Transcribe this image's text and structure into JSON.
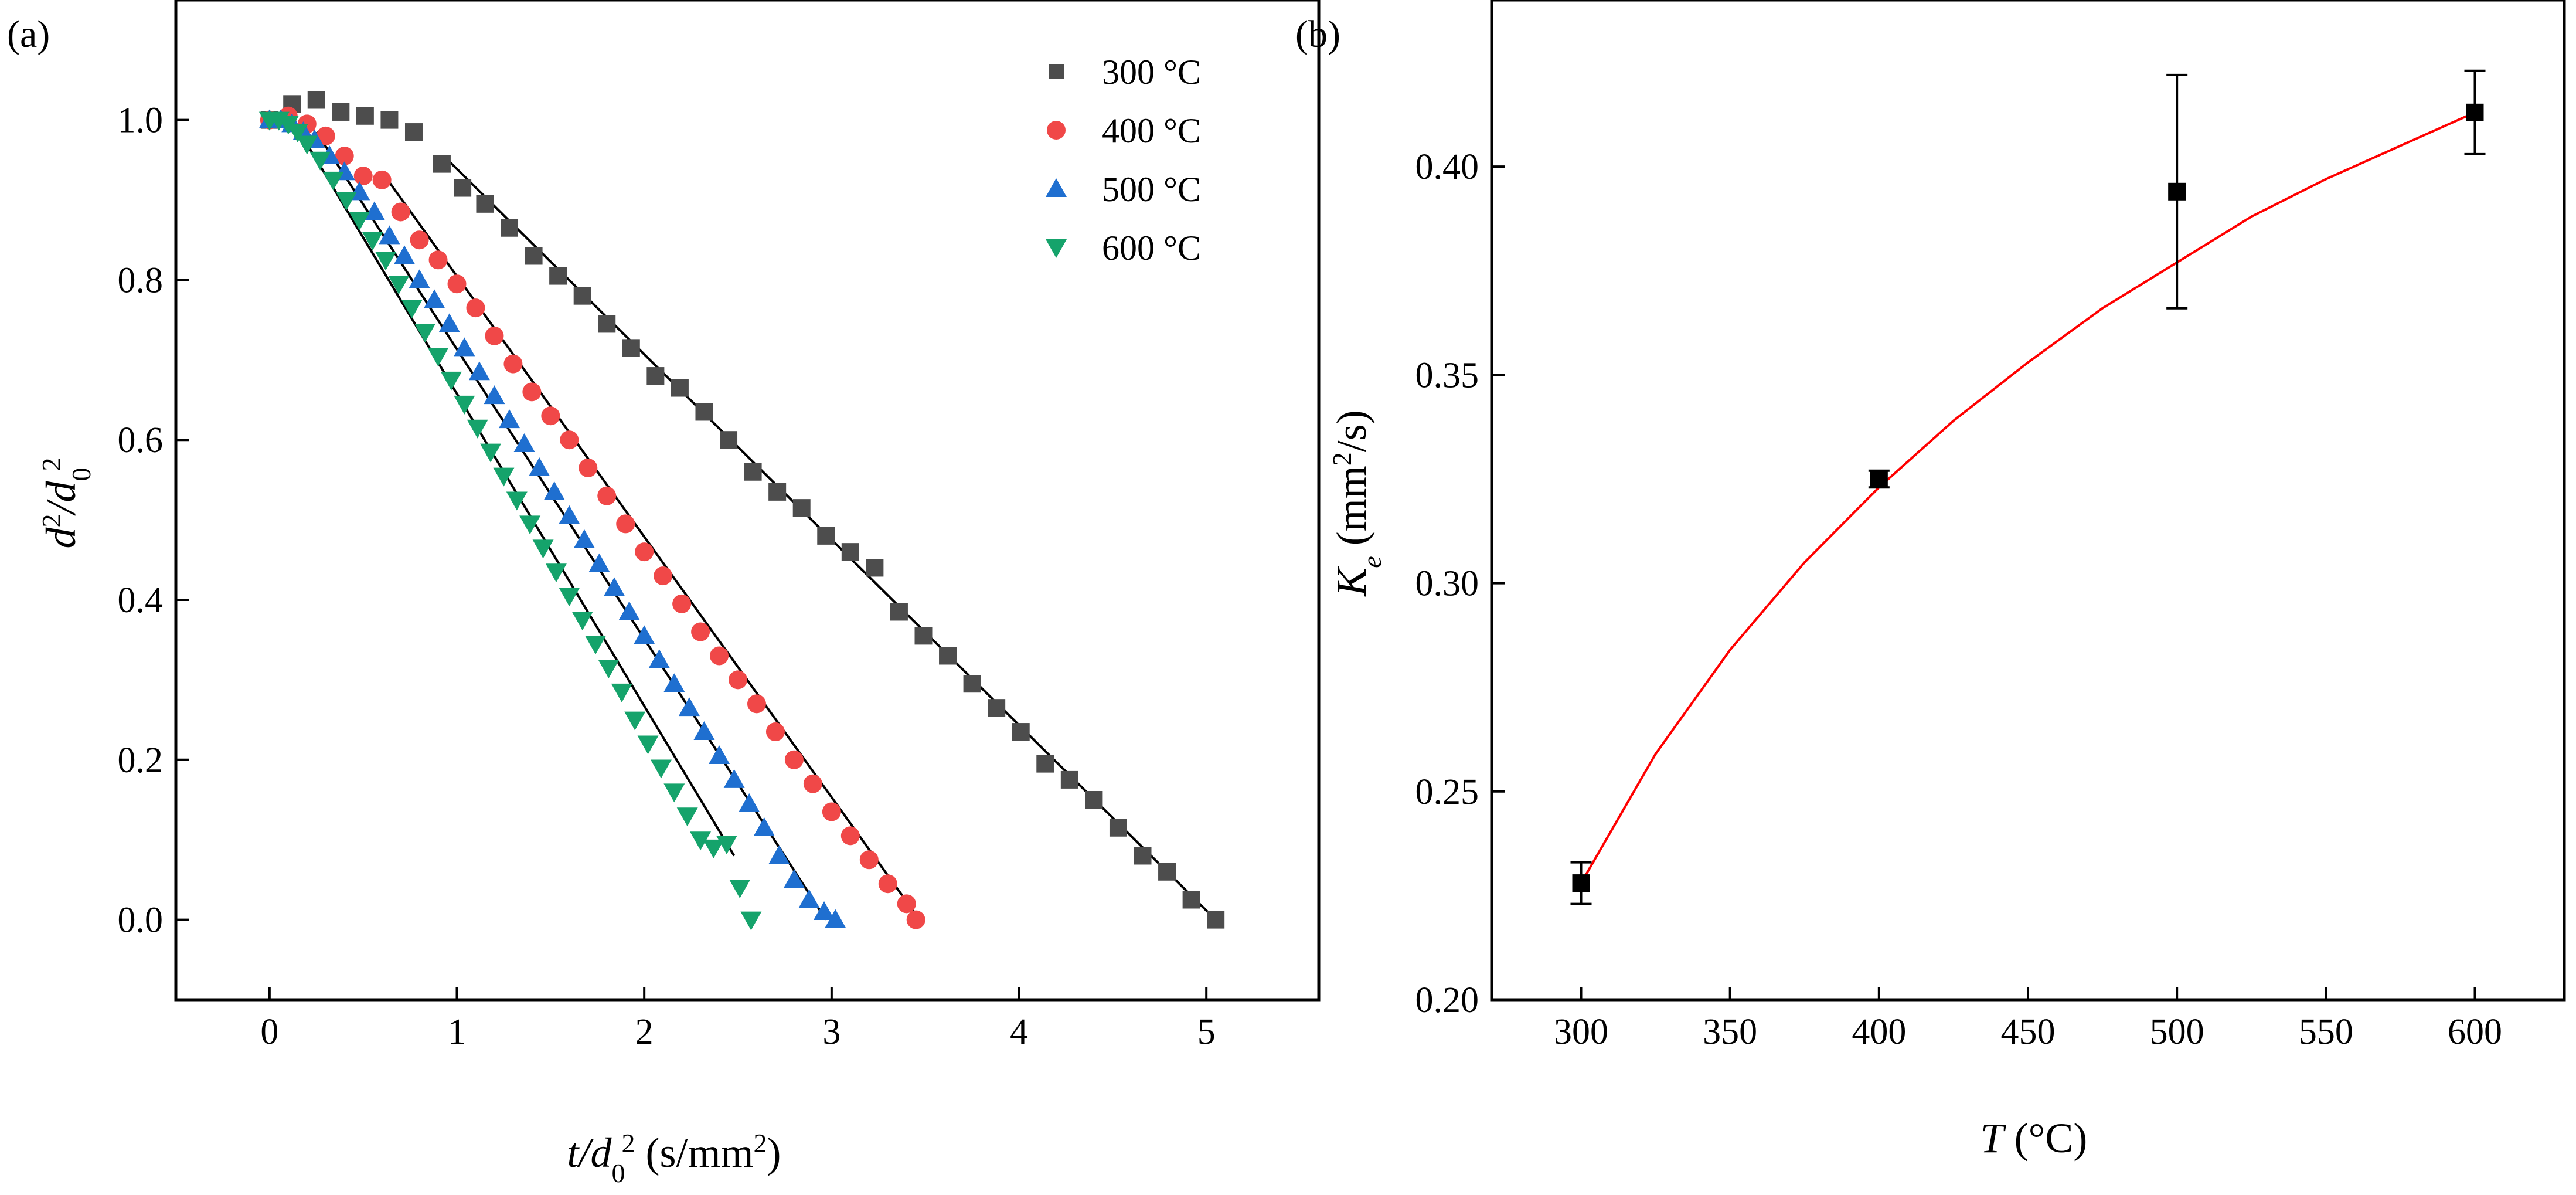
{
  "chart_data": [
    {
      "panel_label": "(a)",
      "type": "scatter",
      "title": "",
      "xlabel": {
        "main": "t/d",
        "sub": "0",
        "sup": "2",
        "units_open": " (s/mm",
        "units_sup": "2",
        "units_close": ")"
      },
      "ylabel": {
        "p1": "d",
        "sup1": "2",
        "p2": "/d",
        "sub": "0",
        "sup2": "2"
      },
      "xlim": [
        -0.5,
        5.6
      ],
      "ylim": [
        -0.1,
        1.15
      ],
      "xticks": [
        0,
        1,
        2,
        3,
        4,
        5
      ],
      "xtick_labels": [
        "0",
        "1",
        "2",
        "3",
        "4",
        "5"
      ],
      "yticks": [
        0.0,
        0.2,
        0.4,
        0.6,
        0.8,
        1.0
      ],
      "ytick_labels": [
        "0.0",
        "0.2",
        "0.4",
        "0.6",
        "0.8",
        "1.0"
      ],
      "legend_position": "top-right",
      "series": [
        {
          "name": "300 °C",
          "marker": "square",
          "color": "#4d4d4d",
          "x": [
            0.0,
            0.12,
            0.25,
            0.38,
            0.51,
            0.64,
            0.77,
            0.92,
            1.03,
            1.15,
            1.28,
            1.41,
            1.54,
            1.67,
            1.8,
            1.93,
            2.06,
            2.19,
            2.32,
            2.45,
            2.58,
            2.71,
            2.84,
            2.97,
            3.1,
            3.23,
            3.36,
            3.49,
            3.62,
            3.75,
            3.88,
            4.01,
            4.14,
            4.27,
            4.4,
            4.53,
            4.66,
            4.79,
            4.92,
            5.05
          ],
          "y": [
            1.0,
            1.02,
            1.025,
            1.01,
            1.005,
            1.0,
            0.985,
            0.945,
            0.915,
            0.895,
            0.865,
            0.83,
            0.805,
            0.78,
            0.745,
            0.715,
            0.68,
            0.665,
            0.635,
            0.6,
            0.56,
            0.535,
            0.515,
            0.48,
            0.46,
            0.44,
            0.385,
            0.355,
            0.33,
            0.295,
            0.265,
            0.235,
            0.195,
            0.175,
            0.15,
            0.115,
            0.08,
            0.06,
            0.025,
            0.0
          ]
        },
        {
          "name": "400 °C",
          "marker": "circle",
          "color": "#f04848",
          "x": [
            0.0,
            0.1,
            0.2,
            0.3,
            0.4,
            0.5,
            0.6,
            0.7,
            0.8,
            0.9,
            1.0,
            1.1,
            1.2,
            1.3,
            1.4,
            1.5,
            1.6,
            1.7,
            1.8,
            1.9,
            2.0,
            2.1,
            2.2,
            2.3,
            2.4,
            2.5,
            2.6,
            2.7,
            2.8,
            2.9,
            3.0,
            3.1,
            3.2,
            3.3,
            3.4,
            3.45
          ],
          "y": [
            1.0,
            1.005,
            0.995,
            0.98,
            0.955,
            0.93,
            0.925,
            0.885,
            0.85,
            0.825,
            0.795,
            0.765,
            0.73,
            0.695,
            0.66,
            0.63,
            0.6,
            0.565,
            0.53,
            0.495,
            0.46,
            0.43,
            0.395,
            0.36,
            0.33,
            0.3,
            0.27,
            0.235,
            0.2,
            0.17,
            0.135,
            0.105,
            0.075,
            0.045,
            0.02,
            0.0
          ]
        },
        {
          "name": "500 °C",
          "marker": "triangle-up",
          "color": "#1f6fd0",
          "x": [
            0.0,
            0.06,
            0.12,
            0.18,
            0.24,
            0.32,
            0.4,
            0.48,
            0.56,
            0.64,
            0.72,
            0.8,
            0.88,
            0.96,
            1.04,
            1.12,
            1.2,
            1.28,
            1.36,
            1.44,
            1.52,
            1.6,
            1.68,
            1.76,
            1.84,
            1.92,
            2.0,
            2.08,
            2.16,
            2.24,
            2.32,
            2.4,
            2.48,
            2.56,
            2.64,
            2.72,
            2.8,
            2.88,
            2.96,
            3.02
          ],
          "y": [
            1.0,
            1.0,
            0.995,
            0.985,
            0.975,
            0.955,
            0.935,
            0.91,
            0.885,
            0.855,
            0.83,
            0.8,
            0.775,
            0.745,
            0.715,
            0.685,
            0.655,
            0.625,
            0.595,
            0.565,
            0.535,
            0.505,
            0.475,
            0.445,
            0.415,
            0.385,
            0.355,
            0.325,
            0.295,
            0.265,
            0.235,
            0.205,
            0.175,
            0.145,
            0.115,
            0.08,
            0.05,
            0.025,
            0.01,
            0.0
          ]
        },
        {
          "name": "600 °C",
          "marker": "triangle-down",
          "color": "#15a36b",
          "x": [
            0.0,
            0.05,
            0.1,
            0.15,
            0.2,
            0.27,
            0.34,
            0.41,
            0.48,
            0.55,
            0.62,
            0.69,
            0.76,
            0.83,
            0.9,
            0.97,
            1.04,
            1.11,
            1.18,
            1.25,
            1.32,
            1.39,
            1.46,
            1.53,
            1.6,
            1.67,
            1.74,
            1.81,
            1.88,
            1.95,
            2.02,
            2.09,
            2.16,
            2.23,
            2.3,
            2.37,
            2.44,
            2.51,
            2.57
          ],
          "y": [
            1.0,
            1.0,
            0.995,
            0.985,
            0.97,
            0.95,
            0.925,
            0.9,
            0.875,
            0.85,
            0.825,
            0.795,
            0.765,
            0.735,
            0.705,
            0.675,
            0.645,
            0.615,
            0.585,
            0.555,
            0.525,
            0.495,
            0.465,
            0.435,
            0.405,
            0.375,
            0.345,
            0.315,
            0.285,
            0.25,
            0.22,
            0.19,
            0.16,
            0.13,
            0.1,
            0.09,
            0.095,
            0.04,
            0.0
          ]
        }
      ],
      "fit_lines": [
        {
          "x": [
            0.93,
            5.05
          ],
          "y": [
            0.955,
            0.0
          ]
        },
        {
          "x": [
            0.6,
            3.47
          ],
          "y": [
            0.935,
            0.0
          ]
        },
        {
          "x": [
            0.25,
            2.97
          ],
          "y": [
            0.985,
            0.0
          ]
        },
        {
          "x": [
            0.2,
            2.48
          ],
          "y": [
            0.97,
            0.08
          ]
        }
      ]
    },
    {
      "panel_label": "(b)",
      "type": "scatter",
      "title": "",
      "xlabel": {
        "italic": "T",
        "rest": " (°C)"
      },
      "ylabel": {
        "main": "K",
        "sub": "e",
        "units_open": " (mm",
        "units_sup": "2",
        "units_close": "/s)"
      },
      "xlim": [
        270,
        630
      ],
      "ylim": [
        0.2,
        0.44
      ],
      "xticks": [
        300,
        350,
        400,
        450,
        500,
        550,
        600
      ],
      "xtick_labels": [
        "300",
        "350",
        "400",
        "450",
        "500",
        "550",
        "600"
      ],
      "yticks": [
        0.2,
        0.25,
        0.3,
        0.35,
        0.4
      ],
      "ytick_labels": [
        "0.20",
        "0.25",
        "0.30",
        "0.35",
        "0.40"
      ],
      "series": [
        {
          "name": "Ke",
          "marker": "square",
          "color": "#000000",
          "x": [
            300,
            400,
            500,
            600
          ],
          "y": [
            0.228,
            0.325,
            0.394,
            0.413
          ],
          "err": [
            0.005,
            0.002,
            0.028,
            0.01
          ]
        }
      ],
      "fit_curve": {
        "color": "#ff0000",
        "x": [
          300,
          325,
          350,
          375,
          400,
          425,
          450,
          475,
          500,
          525,
          550,
          575,
          600
        ],
        "y": [
          0.228,
          0.259,
          0.284,
          0.305,
          0.323,
          0.339,
          0.353,
          0.366,
          0.377,
          0.388,
          0.397,
          0.405,
          0.413
        ]
      }
    }
  ]
}
